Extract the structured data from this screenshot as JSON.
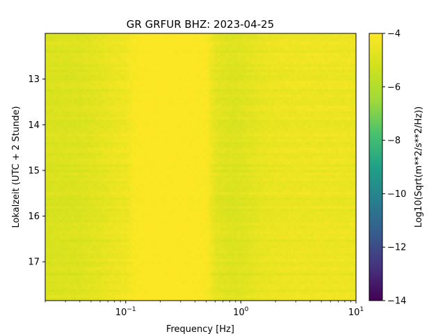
{
  "chart_data": {
    "type": "heatmap",
    "title": "GR GRFUR  BHZ: 2023-04-25",
    "xlabel": "Frequency [Hz]",
    "ylabel": "Lokalzeit (UTC + 2 Stunde)",
    "xscale": "log",
    "xlim": [
      0.02,
      10
    ],
    "ylim": [
      17.85,
      12.0
    ],
    "x_ticks": [
      {
        "value": 0.1,
        "base": "10",
        "exp": "−1"
      },
      {
        "value": 1,
        "base": "10",
        "exp": "0"
      },
      {
        "value": 10,
        "base": "10",
        "exp": "1"
      }
    ],
    "y_ticks": [
      {
        "value": 13,
        "label": "13"
      },
      {
        "value": 14,
        "label": "14"
      },
      {
        "value": 15,
        "label": "15"
      },
      {
        "value": 16,
        "label": "16"
      },
      {
        "value": 17,
        "label": "17"
      }
    ],
    "colorbar": {
      "label": "Log10(Sqrt(m**2/s**2/Hz))",
      "colormap": "viridis",
      "range": [
        -14,
        -4
      ],
      "ticks": [
        {
          "value": -4,
          "label": "−4"
        },
        {
          "value": -6,
          "label": "−6"
        },
        {
          "value": -8,
          "label": "−8"
        },
        {
          "value": -10,
          "label": "−10"
        },
        {
          "value": -12,
          "label": "−12"
        },
        {
          "value": -14,
          "label": "−14"
        }
      ]
    },
    "spectral_profile": {
      "frequency_hz": [
        0.02,
        0.04,
        0.06,
        0.08,
        0.1,
        0.12,
        0.15,
        0.3,
        0.5,
        0.6,
        0.8,
        1.0,
        1.5,
        2,
        3,
        5,
        8,
        10
      ],
      "log10_amplitude": [
        -5.0,
        -4.9,
        -4.7,
        -4.5,
        -4.4,
        -4.1,
        -4.0,
        -4.0,
        -4.05,
        -4.7,
        -4.9,
        -4.85,
        -4.6,
        -4.5,
        -4.45,
        -4.45,
        -4.45,
        -4.5
      ]
    }
  }
}
